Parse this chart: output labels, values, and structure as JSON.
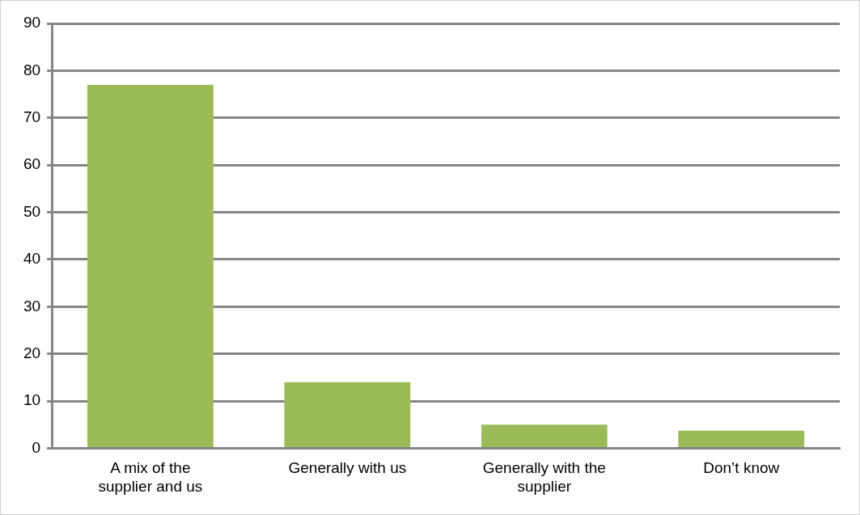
{
  "chart_data": {
    "type": "bar",
    "categories": [
      "A mix of the supplier and us",
      "Generally with us",
      "Generally with the supplier",
      "Don’t know"
    ],
    "values": [
      77,
      14,
      5,
      3.7
    ],
    "color": "#9bbb59",
    "ylim": [
      0,
      90
    ],
    "yticks": [
      0,
      10,
      20,
      30,
      40,
      50,
      60,
      70,
      80,
      90
    ],
    "grid": "y"
  }
}
